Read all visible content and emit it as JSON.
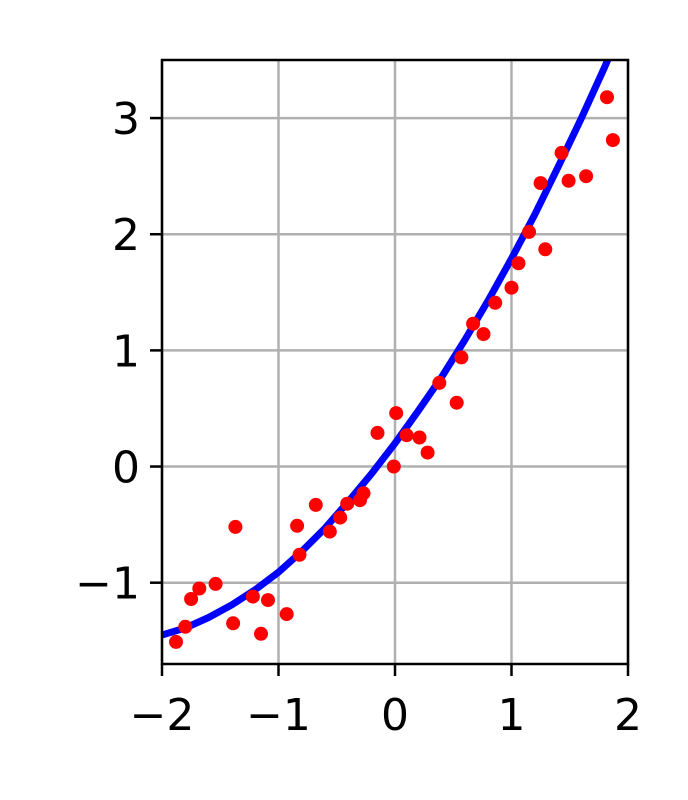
{
  "chart_data": {
    "type": "scatter",
    "xlim": [
      -2,
      2
    ],
    "ylim": [
      -1.7,
      3.5
    ],
    "xticks": [
      -2,
      -1,
      0,
      1,
      2
    ],
    "xtick_labels": [
      "−2",
      "−1",
      "0",
      "1",
      "2"
    ],
    "yticks": [
      -1,
      0,
      1,
      2,
      3
    ],
    "ytick_labels": [
      "−1",
      "0",
      "1",
      "2",
      "3"
    ],
    "grid": true,
    "series": [
      {
        "kind": "scatter",
        "color": "#ff0000",
        "x": [
          -1.88,
          -1.8,
          -1.75,
          -1.68,
          -1.54,
          -1.39,
          -1.37,
          -1.22,
          -1.15,
          -1.09,
          -0.93,
          -0.84,
          -0.82,
          -0.68,
          -0.56,
          -0.47,
          -0.41,
          -0.3,
          -0.27,
          -0.15,
          -0.01,
          0.01,
          0.1,
          0.21,
          0.28,
          0.38,
          0.53,
          0.57,
          0.67,
          0.76,
          0.86,
          1.0,
          1.06,
          1.15,
          1.25,
          1.29,
          1.43,
          1.49,
          1.64,
          1.82,
          1.87
        ],
        "y": [
          -1.51,
          -1.38,
          -1.14,
          -1.05,
          -1.01,
          -1.35,
          -0.52,
          -1.12,
          -1.44,
          -1.15,
          -1.27,
          -0.51,
          -0.76,
          -0.33,
          -0.56,
          -0.44,
          -0.32,
          -0.29,
          -0.23,
          0.29,
          0.0,
          0.46,
          0.27,
          0.25,
          0.12,
          0.72,
          0.55,
          0.94,
          1.23,
          1.14,
          1.41,
          1.54,
          1.75,
          2.02,
          2.44,
          1.87,
          2.7,
          2.46,
          2.5,
          3.18,
          2.81
        ]
      },
      {
        "kind": "line",
        "color": "#0000ff",
        "x": [
          -2.0,
          -1.8,
          -1.6,
          -1.4,
          -1.2,
          -1.0,
          -0.8,
          -0.6,
          -0.4,
          -0.2,
          0.0,
          0.2,
          0.4,
          0.6,
          0.8,
          1.0,
          1.2,
          1.4,
          1.6,
          1.8,
          2.0
        ],
        "y": [
          -1.45,
          -1.39,
          -1.3,
          -1.19,
          -1.06,
          -0.91,
          -0.73,
          -0.53,
          -0.3,
          -0.06,
          0.2,
          0.48,
          0.77,
          1.09,
          1.43,
          1.79,
          2.17,
          2.58,
          3.0,
          3.44,
          3.91
        ]
      }
    ]
  }
}
